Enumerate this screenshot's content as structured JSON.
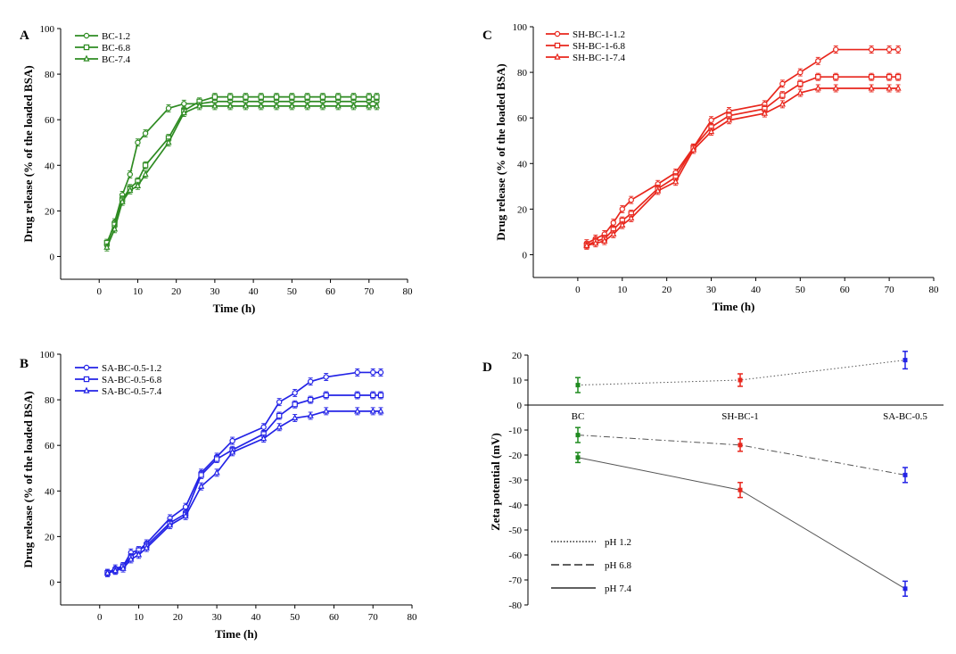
{
  "chart_data": [
    {
      "type": "line",
      "panel": "A",
      "xlabel": "Time (h)",
      "ylabel": "Drug release (% of the loaded BSA)",
      "xlim": [
        -10,
        80
      ],
      "ylim": [
        -10,
        100
      ],
      "xticks": [
        "0",
        "10",
        "20",
        "30",
        "40",
        "50",
        "60",
        "70",
        "80"
      ],
      "yticks": [
        "0",
        "20",
        "40",
        "60",
        "80",
        "100"
      ],
      "legend_position": "top-left",
      "series": [
        {
          "name": "BC-1.2",
          "color": "#2e8b22",
          "x": [
            2,
            4,
            6,
            8,
            10,
            12,
            18,
            22,
            26,
            30,
            34,
            38,
            42,
            46,
            50,
            54,
            58,
            62,
            66,
            70,
            72
          ],
          "y": [
            5,
            15,
            27,
            36,
            50,
            54,
            65,
            67,
            67,
            68,
            68,
            68,
            68,
            68,
            68,
            68,
            68,
            68,
            68,
            68,
            68
          ]
        },
        {
          "name": "BC-6.8",
          "color": "#2e8b22",
          "x": [
            2,
            4,
            6,
            8,
            10,
            12,
            18,
            22,
            26,
            30,
            34,
            38,
            42,
            46,
            50,
            54,
            58,
            62,
            66,
            70,
            72
          ],
          "y": [
            6,
            14,
            25,
            30,
            33,
            40,
            52,
            64,
            68,
            70,
            70,
            70,
            70,
            70,
            70,
            70,
            70,
            70,
            70,
            70,
            70
          ]
        },
        {
          "name": "BC-7.4",
          "color": "#2e8b22",
          "x": [
            2,
            4,
            6,
            8,
            10,
            12,
            18,
            22,
            26,
            30,
            34,
            38,
            42,
            46,
            50,
            54,
            58,
            62,
            66,
            70,
            72
          ],
          "y": [
            4,
            12,
            24,
            29,
            31,
            36,
            50,
            63,
            66,
            66,
            66,
            66,
            66,
            66,
            66,
            66,
            66,
            66,
            66,
            66,
            66
          ]
        }
      ]
    },
    {
      "type": "line",
      "panel": "C",
      "xlabel": "Time (h)",
      "ylabel": "Drug release (% of the loaded BSA)",
      "xlim": [
        -10,
        80
      ],
      "ylim": [
        -10,
        100
      ],
      "xticks": [
        "0",
        "10",
        "20",
        "30",
        "40",
        "50",
        "60",
        "70",
        "80"
      ],
      "yticks": [
        "0",
        "20",
        "40",
        "60",
        "80",
        "100"
      ],
      "legend_position": "top-left",
      "series": [
        {
          "name": "SH-BC-1-1.2",
          "color": "#e8261c",
          "x": [
            2,
            4,
            6,
            8,
            10,
            12,
            18,
            22,
            26,
            30,
            34,
            42,
            46,
            50,
            54,
            58,
            66,
            70,
            72
          ],
          "y": [
            5,
            7,
            9,
            14,
            20,
            24,
            31,
            36,
            47,
            59,
            63,
            66,
            75,
            80,
            85,
            90,
            90,
            90,
            90
          ]
        },
        {
          "name": "SH-BC-1-6.8",
          "color": "#e8261c",
          "x": [
            2,
            4,
            6,
            8,
            10,
            12,
            18,
            22,
            26,
            30,
            34,
            42,
            46,
            50,
            54,
            58,
            66,
            70,
            72
          ],
          "y": [
            4,
            6,
            7,
            11,
            15,
            18,
            29,
            34,
            47,
            56,
            61,
            64,
            70,
            75,
            78,
            78,
            78,
            78,
            78
          ]
        },
        {
          "name": "SH-BC-1-7.4",
          "color": "#e8261c",
          "x": [
            2,
            4,
            6,
            8,
            10,
            12,
            18,
            22,
            26,
            30,
            34,
            42,
            46,
            50,
            54,
            58,
            66,
            70,
            72
          ],
          "y": [
            4,
            5,
            6,
            9,
            13,
            16,
            28,
            32,
            46,
            54,
            59,
            62,
            66,
            71,
            73,
            73,
            73,
            73,
            73
          ]
        }
      ]
    },
    {
      "type": "line",
      "panel": "B",
      "xlabel": "Time (h)",
      "ylabel": "Drug release (% of the loaded BSA)",
      "xlim": [
        -10,
        80
      ],
      "ylim": [
        -10,
        100
      ],
      "xticks": [
        "0",
        "10",
        "20",
        "30",
        "40",
        "50",
        "60",
        "70",
        "80"
      ],
      "yticks": [
        "0",
        "20",
        "40",
        "60",
        "80",
        "100"
      ],
      "legend_position": "top-left",
      "series": [
        {
          "name": "SA-BC-0.5-1.2",
          "color": "#2323e6",
          "x": [
            2,
            4,
            6,
            8,
            10,
            12,
            18,
            22,
            26,
            30,
            34,
            42,
            46,
            50,
            54,
            58,
            66,
            70,
            72
          ],
          "y": [
            4,
            6,
            7,
            13,
            14,
            17,
            28,
            33,
            48,
            55,
            62,
            68,
            79,
            83,
            88,
            90,
            92,
            92,
            92
          ]
        },
        {
          "name": "SA-BC-0.5-6.8",
          "color": "#2323e6",
          "x": [
            2,
            4,
            6,
            8,
            10,
            12,
            18,
            22,
            26,
            30,
            34,
            42,
            46,
            50,
            54,
            58,
            66,
            70,
            72
          ],
          "y": [
            4,
            5,
            7,
            11,
            14,
            16,
            26,
            30,
            47,
            54,
            58,
            65,
            73,
            78,
            80,
            82,
            82,
            82,
            82
          ]
        },
        {
          "name": "SA-BC-0.5-7.4",
          "color": "#2323e6",
          "x": [
            2,
            4,
            6,
            8,
            10,
            12,
            18,
            22,
            26,
            30,
            34,
            42,
            46,
            50,
            54,
            58,
            66,
            70,
            72
          ],
          "y": [
            4,
            5,
            6,
            10,
            12,
            15,
            25,
            29,
            42,
            48,
            57,
            63,
            68,
            72,
            73,
            75,
            75,
            75,
            75
          ]
        }
      ]
    },
    {
      "type": "line",
      "panel": "D",
      "ylabel": "Zeta potential (mV)",
      "categories": [
        "BC",
        "SH-BC-1",
        "SA-BC-0.5"
      ],
      "category_colors": [
        "#1f8a1f",
        "#e8261c",
        "#2323e6"
      ],
      "ylim": [
        -80,
        20
      ],
      "yticks": [
        "20",
        "10",
        "0",
        "-10",
        "-20",
        "-30",
        "-40",
        "-50",
        "-60",
        "-70",
        "-80"
      ],
      "legend_position": "bottom-left",
      "series": [
        {
          "name": "pH 1.2",
          "dash": "dotted",
          "values": [
            8,
            10,
            18
          ],
          "errors": [
            3,
            2.5,
            3.5
          ]
        },
        {
          "name": "pH 6.8",
          "dash": "dashdot",
          "values": [
            -12,
            -16,
            -28
          ],
          "errors": [
            3,
            2.5,
            3
          ]
        },
        {
          "name": "pH 7.4",
          "dash": "solid",
          "values": [
            -21,
            -34,
            -73.5
          ],
          "errors": [
            2,
            3,
            3
          ]
        }
      ]
    }
  ]
}
